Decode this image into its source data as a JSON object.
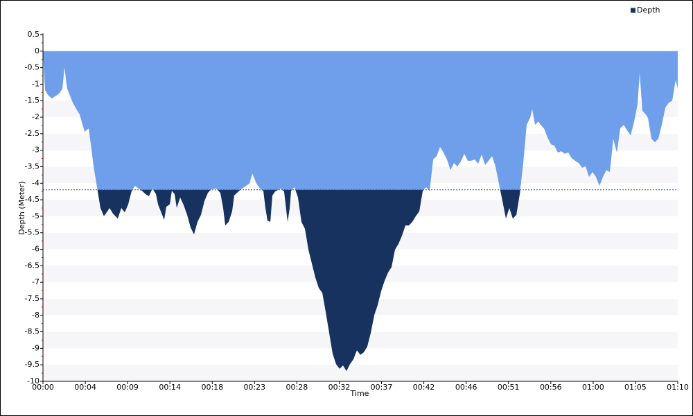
{
  "chart_data": {
    "type": "area",
    "x_label": "Time",
    "y_label": "Depth (Meter)",
    "xlim": [
      0,
      70
    ],
    "xticks": [
      {
        "value": 0,
        "label": "00:00"
      },
      {
        "value": 4.67,
        "label": "00:04"
      },
      {
        "value": 9.33,
        "label": "00:09"
      },
      {
        "value": 14,
        "label": "00:14"
      },
      {
        "value": 18.67,
        "label": "00:18"
      },
      {
        "value": 23.33,
        "label": "00:23"
      },
      {
        "value": 28,
        "label": "00:28"
      },
      {
        "value": 32.67,
        "label": "00:32"
      },
      {
        "value": 37.33,
        "label": "00:37"
      },
      {
        "value": 42,
        "label": "00:42"
      },
      {
        "value": 46.67,
        "label": "00:46"
      },
      {
        "value": 51.33,
        "label": "00:51"
      },
      {
        "value": 56,
        "label": "00:56"
      },
      {
        "value": 60.67,
        "label": "01:00"
      },
      {
        "value": 65.33,
        "label": "01:05"
      },
      {
        "value": 70,
        "label": "01:10"
      }
    ],
    "ylim": [
      -10,
      0.5
    ],
    "yticks": [
      0.5,
      0,
      -0.5,
      -1,
      -1.5,
      -2,
      -2.5,
      -3,
      -3.5,
      -4,
      -4.5,
      -5,
      -5.5,
      -6,
      -6.5,
      -7,
      -7.5,
      -8,
      -8.5,
      -9,
      -9.5,
      -10
    ],
    "threshold": -4.2,
    "threshold_color": "#2f4fa8",
    "above_threshold_color": "#6f9fea",
    "stripe_color": "#f6f6f8",
    "legend": "top-right",
    "series": [
      {
        "name": "Depth",
        "color": "#17325f",
        "x": [
          0,
          0.23,
          0.61,
          0.99,
          1.76,
          2.14,
          2.37,
          2.67,
          3.29,
          3.67,
          4.05,
          4.59,
          5.04,
          5.35,
          5.58,
          5.96,
          6.34,
          6.72,
          7.11,
          7.34,
          7.72,
          8.25,
          8.64,
          9.02,
          9.4,
          9.78,
          10.16,
          10.55,
          10.93,
          11.31,
          11.69,
          12.07,
          12.46,
          12.69,
          12.99,
          13.37,
          13.6,
          13.99,
          14.21,
          14.52,
          14.75,
          15.13,
          15.51,
          15.9,
          16.28,
          16.66,
          17.04,
          17.42,
          17.81,
          18.19,
          18.57,
          19.1,
          19.56,
          19.87,
          20.1,
          20.48,
          20.86,
          21.09,
          21.63,
          22.39,
          22.77,
          23.08,
          23.54,
          23.92,
          24.3,
          24.53,
          24.76,
          25.07,
          25.3,
          25.6,
          26.21,
          26.59,
          26.98,
          27.21,
          27.36,
          27.74,
          28.12,
          28.5,
          28.89,
          29.27,
          29.65,
          30.03,
          30.41,
          30.8,
          31.18,
          31.56,
          31.94,
          32.32,
          32.71,
          33.09,
          33.47,
          33.85,
          34.24,
          34.62,
          35,
          35.38,
          35.76,
          36.15,
          36.53,
          36.91,
          37.29,
          37.68,
          38.06,
          38.44,
          38.82,
          39.2,
          39.59,
          39.97,
          40.35,
          40.73,
          41.11,
          41.5,
          41.88,
          42.26,
          42.64,
          43.03,
          43.41,
          43.79,
          44.17,
          44.55,
          44.94,
          45.32,
          45.7,
          46.08,
          46.46,
          46.85,
          47.23,
          47.61,
          47.99,
          48.37,
          48.76,
          49.14,
          49.52,
          49.9,
          50.28,
          50.67,
          51.05,
          51.43,
          51.81,
          52.2,
          52.58,
          52.96,
          53.34,
          53.72,
          53.95,
          54.26,
          54.64,
          54.87,
          55.25,
          55.63,
          56.02,
          56.4,
          56.78,
          57.16,
          57.54,
          57.93,
          58.31,
          58.69,
          59.07,
          59.46,
          59.84,
          60.22,
          60.6,
          60.98,
          61.37,
          61.75,
          62.13,
          62.51,
          62.89,
          63.28,
          63.66,
          64.04,
          64.42,
          64.81,
          65.19,
          65.57,
          65.8,
          66.1,
          66.49,
          66.71,
          67.1,
          67.48,
          67.86,
          68.24,
          68.63,
          69.01,
          69.39,
          69.77,
          70
        ],
        "values": [
          0,
          -1.18,
          -1.35,
          -1.43,
          -1.29,
          -1.14,
          -0.49,
          -1.14,
          -1.56,
          -1.75,
          -1.92,
          -2.44,
          -2.34,
          -2.97,
          -3.49,
          -4.12,
          -4.75,
          -5.0,
          -4.85,
          -4.75,
          -4.92,
          -5.07,
          -4.75,
          -4.88,
          -4.64,
          -4.23,
          -4.08,
          -4.16,
          -4.23,
          -4.33,
          -4.39,
          -4.16,
          -4.33,
          -4.64,
          -4.85,
          -5.11,
          -4.71,
          -4.64,
          -4.23,
          -4.33,
          -4.75,
          -4.43,
          -4.66,
          -4.96,
          -5.34,
          -5.55,
          -5.17,
          -4.96,
          -4.54,
          -4.29,
          -4.18,
          -4.16,
          -4.29,
          -4.75,
          -5.28,
          -5.17,
          -4.85,
          -4.37,
          -4.23,
          -4.08,
          -4.01,
          -3.7,
          -4.01,
          -4.16,
          -4.23,
          -4.75,
          -5.13,
          -5.17,
          -4.37,
          -4.25,
          -4.16,
          -4.25,
          -5.17,
          -4.75,
          -4.23,
          -4.12,
          -4.43,
          -5.17,
          -5.38,
          -6.01,
          -6.43,
          -6.85,
          -7.17,
          -7.32,
          -7.9,
          -8.53,
          -9.16,
          -9.48,
          -9.62,
          -9.52,
          -9.69,
          -9.48,
          -9.33,
          -9.06,
          -9.2,
          -9.12,
          -8.95,
          -8.53,
          -8.0,
          -7.69,
          -7.27,
          -6.95,
          -6.7,
          -6.54,
          -6.01,
          -5.84,
          -5.59,
          -5.28,
          -5.28,
          -5.17,
          -5.0,
          -4.85,
          -4.23,
          -4.12,
          -4.23,
          -3.28,
          -3.18,
          -2.9,
          -3.07,
          -3.28,
          -3.6,
          -3.39,
          -3.49,
          -3.34,
          -3.11,
          -3.32,
          -3.32,
          -3.28,
          -3.41,
          -3.13,
          -3.45,
          -3.32,
          -3.18,
          -3.49,
          -4.01,
          -4.54,
          -5.07,
          -4.75,
          -5.07,
          -4.96,
          -4.33,
          -3.39,
          -2.23,
          -2.02,
          -1.75,
          -2.23,
          -2.13,
          -2.23,
          -2.34,
          -2.61,
          -2.82,
          -2.86,
          -3.07,
          -3.03,
          -3.11,
          -3.07,
          -3.24,
          -3.32,
          -3.39,
          -3.53,
          -3.49,
          -3.81,
          -3.66,
          -3.81,
          -4.08,
          -3.81,
          -3.6,
          -3.66,
          -2.65,
          -3.07,
          -2.34,
          -2.23,
          -2.4,
          -2.55,
          -2.13,
          -1.6,
          -0.66,
          -1.81,
          -1.92,
          -2.02,
          -2.65,
          -2.76,
          -2.65,
          -2.23,
          -1.71,
          -1.56,
          -1.5,
          -0.87,
          -1.14
        ]
      }
    ]
  }
}
